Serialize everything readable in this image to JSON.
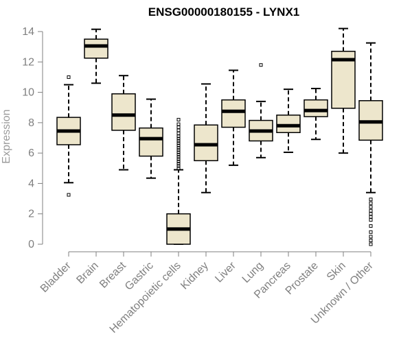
{
  "chart_data": {
    "type": "boxplot",
    "title": "ENSG00000180155 - LYNX1",
    "ylabel": "Expression",
    "xlabel": "",
    "ylim": [
      0,
      14
    ],
    "yticks": [
      0,
      2,
      4,
      6,
      8,
      10,
      12,
      14
    ],
    "box_fill": "#ede6cc",
    "stroke_color": "#000000",
    "text_color": "#7f7f7f",
    "categories": [
      "Bladder",
      "Brain",
      "Breast",
      "Gastric",
      "Hematopoietic cells",
      "Kidney",
      "Liver",
      "Lung",
      "Pancreas",
      "Prostate",
      "Skin",
      "Unknown / Other"
    ],
    "boxes": [
      {
        "category": "Bladder",
        "whisker_low": 4.05,
        "q1": 6.55,
        "median": 7.45,
        "q3": 8.35,
        "whisker_high": 10.5,
        "outliers": [
          3.25,
          11.0
        ]
      },
      {
        "category": "Brain",
        "whisker_low": 10.6,
        "q1": 12.25,
        "median": 13.05,
        "q3": 13.5,
        "whisker_high": 14.15,
        "outliers": []
      },
      {
        "category": "Breast",
        "whisker_low": 4.9,
        "q1": 7.5,
        "median": 8.5,
        "q3": 9.9,
        "whisker_high": 11.1,
        "outliers": []
      },
      {
        "category": "Gastric",
        "whisker_low": 4.35,
        "q1": 5.8,
        "median": 6.95,
        "q3": 7.65,
        "whisker_high": 9.55,
        "outliers": []
      },
      {
        "category": "Hematopoietic cells",
        "whisker_low": 0.0,
        "q1": 0.0,
        "median": 1.0,
        "q3": 2.0,
        "whisker_high": 4.9,
        "outliers": [
          5.0,
          5.15,
          5.3,
          5.45,
          5.6,
          5.75,
          5.9,
          6.05,
          6.2,
          6.35,
          6.5,
          6.65,
          6.8,
          6.95,
          7.1,
          7.3,
          7.5,
          7.7,
          7.9,
          8.2
        ]
      },
      {
        "category": "Kidney",
        "whisker_low": 3.4,
        "q1": 5.5,
        "median": 6.55,
        "q3": 7.85,
        "whisker_high": 10.55,
        "outliers": []
      },
      {
        "category": "Liver",
        "whisker_low": 5.2,
        "q1": 7.7,
        "median": 8.75,
        "q3": 9.5,
        "whisker_high": 11.45,
        "outliers": []
      },
      {
        "category": "Lung",
        "whisker_low": 5.7,
        "q1": 6.8,
        "median": 7.45,
        "q3": 8.15,
        "whisker_high": 9.4,
        "outliers": [
          11.8
        ]
      },
      {
        "category": "Pancreas",
        "whisker_low": 6.05,
        "q1": 7.35,
        "median": 7.8,
        "q3": 8.5,
        "whisker_high": 10.2,
        "outliers": []
      },
      {
        "category": "Prostate",
        "whisker_low": 6.9,
        "q1": 8.4,
        "median": 8.8,
        "q3": 9.5,
        "whisker_high": 10.25,
        "outliers": []
      },
      {
        "category": "Skin",
        "whisker_low": 6.0,
        "q1": 8.95,
        "median": 12.15,
        "q3": 12.7,
        "whisker_high": 14.2,
        "outliers": []
      },
      {
        "category": "Unknown / Other",
        "whisker_low": 3.4,
        "q1": 6.85,
        "median": 8.05,
        "q3": 9.45,
        "whisker_high": 13.25,
        "outliers": [
          0.0,
          0.25,
          0.5,
          0.8,
          1.2,
          1.6,
          1.8,
          2.0,
          2.2,
          2.45,
          2.7,
          2.95
        ]
      }
    ]
  }
}
